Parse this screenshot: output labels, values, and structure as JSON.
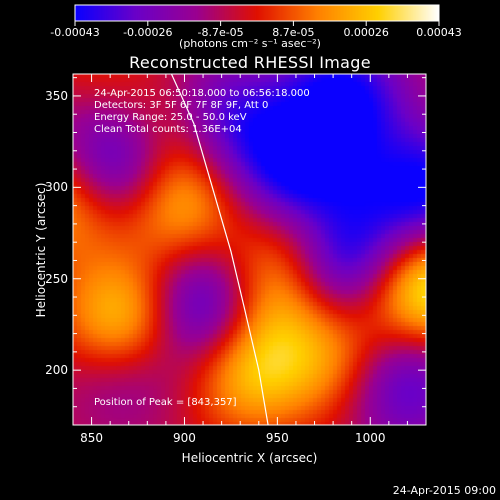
{
  "chart_data": {
    "type": "heatmap",
    "title": "Reconstructed RHESSI Image",
    "xlabel": "Heliocentric X (arcsec)",
    "ylabel": "Heliocentric Y (arcsec)",
    "xlim": [
      840,
      1030
    ],
    "ylim": [
      170,
      362
    ],
    "x_ticks": [
      850,
      900,
      950,
      1000
    ],
    "y_ticks": [
      200,
      250,
      300,
      350
    ],
    "colorbar": {
      "ticks": [
        "-0.00043",
        "-0.00026",
        "-8.7e-05",
        "8.7e-05",
        "0.00026",
        "0.00043"
      ],
      "range": [
        -0.00043,
        0.00043
      ],
      "unit_label": "(photons cm⁻² s⁻¹ asec⁻²)",
      "colormap": [
        "#0a00ff",
        "#6a00c8",
        "#9a0090",
        "#e01000",
        "#ff8000",
        "#ffd000",
        "#ffffff"
      ]
    },
    "annotations": {
      "time": "24-Apr-2015 06:50:18.000 to 06:56:18.000",
      "detectors": "Detectors: 3F 5F 6F 7F 8F 9F, Att 0",
      "energy": "Energy Range: 25.0 - 50.0 keV",
      "method": "Clean     Total counts: 1.36E+04",
      "peak": "Position of Peak = [843,357]"
    },
    "sources": [
      {
        "kind": "negative",
        "x": 862,
        "y": 308,
        "amp": -1.0
      },
      {
        "kind": "negative",
        "x": 920,
        "y": 335,
        "amp": -0.8
      },
      {
        "kind": "negative",
        "x": 985,
        "y": 348,
        "amp": -0.8
      },
      {
        "kind": "negative",
        "x": 962,
        "y": 305,
        "amp": -0.9
      },
      {
        "kind": "negative",
        "x": 840,
        "y": 352,
        "amp": -0.7
      },
      {
        "kind": "negative",
        "x": 985,
        "y": 262,
        "amp": -1.0
      },
      {
        "kind": "negative",
        "x": 912,
        "y": 234,
        "amp": -0.9
      },
      {
        "kind": "negative",
        "x": 868,
        "y": 205,
        "amp": -0.5
      },
      {
        "kind": "negative",
        "x": 1030,
        "y": 298,
        "amp": -0.8
      },
      {
        "kind": "negative",
        "x": 1015,
        "y": 195,
        "amp": -0.7
      },
      {
        "kind": "positive",
        "x": 868,
        "y": 225,
        "amp": 1.0
      },
      {
        "kind": "positive",
        "x": 1030,
        "y": 245,
        "amp": 1.0
      },
      {
        "kind": "positive",
        "x": 843,
        "y": 357,
        "amp": 0.8
      },
      {
        "kind": "positive",
        "x": 840,
        "y": 295,
        "amp": 0.8
      },
      {
        "kind": "positive",
        "x": 895,
        "y": 292,
        "amp": 0.7
      },
      {
        "kind": "positive",
        "x": 935,
        "y": 200,
        "amp": 0.7
      },
      {
        "kind": "positive",
        "x": 965,
        "y": 275,
        "amp": 0.6
      },
      {
        "kind": "positive",
        "x": 945,
        "y": 240,
        "amp": 0.6
      },
      {
        "kind": "positive",
        "x": 985,
        "y": 205,
        "amp": 0.55
      },
      {
        "kind": "positive",
        "x": 900,
        "y": 330,
        "amp": 0.5
      }
    ],
    "limb_curve": [
      [
        893,
        362
      ],
      [
        905,
        335
      ],
      [
        915,
        300
      ],
      [
        925,
        265
      ],
      [
        932,
        235
      ],
      [
        940,
        200
      ],
      [
        945,
        170
      ]
    ]
  },
  "footer": {
    "timestamp": "24-Apr-2015 09:00"
  }
}
